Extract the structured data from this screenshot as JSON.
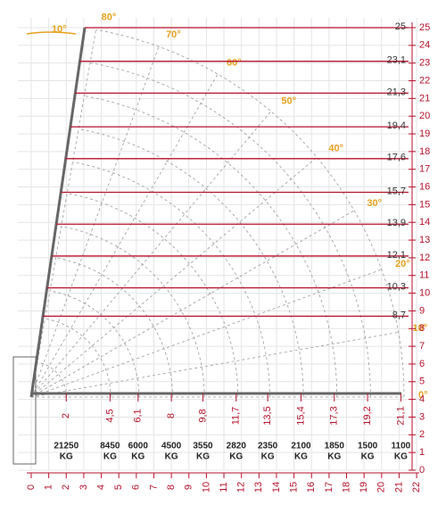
{
  "y_axis": [
    0,
    1,
    2,
    3,
    4,
    5,
    6,
    7,
    8,
    9,
    10,
    11,
    12,
    13,
    14,
    15,
    16,
    17,
    18,
    19,
    20,
    21,
    22,
    23,
    24,
    25
  ],
  "x_axis": [
    0,
    1,
    2,
    3,
    4,
    5,
    6,
    7,
    8,
    9,
    10,
    11,
    12,
    13,
    14,
    15,
    16,
    17,
    18,
    19,
    20,
    21,
    22
  ],
  "heights": [
    {
      "value": 25,
      "label": "25"
    },
    {
      "value": 23.1,
      "label": "23,1"
    },
    {
      "value": 21.3,
      "label": "21,3"
    },
    {
      "value": 19.4,
      "label": "19,4"
    },
    {
      "value": 17.6,
      "label": "17,6"
    },
    {
      "value": 15.7,
      "label": "15,7"
    },
    {
      "value": 13.9,
      "label": "13,9"
    },
    {
      "value": 12.1,
      "label": "12,1"
    },
    {
      "value": 10.3,
      "label": "10,3"
    },
    {
      "value": 8.7,
      "label": "8,7"
    }
  ],
  "reaches": [
    {
      "value": 2,
      "label": "2",
      "load": "21250"
    },
    {
      "value": 4.5,
      "label": "4,5",
      "load": "8450"
    },
    {
      "value": 6.1,
      "label": "6,1",
      "load": "6000"
    },
    {
      "value": 8,
      "label": "8",
      "load": "4500"
    },
    {
      "value": 9.8,
      "label": "9,8",
      "load": "3550"
    },
    {
      "value": 11.7,
      "label": "11,7",
      "load": "2820"
    },
    {
      "value": 13.5,
      "label": "13,5",
      "load": "2350"
    },
    {
      "value": 15.4,
      "label": "15,4",
      "load": "2100"
    },
    {
      "value": 17.3,
      "label": "17,3",
      "load": "1850"
    },
    {
      "value": 19.2,
      "label": "19,2",
      "load": "1500"
    },
    {
      "value": 21.1,
      "label": "21,1",
      "load": "1100"
    }
  ],
  "load_unit": "KG",
  "angles": [
    {
      "value": 80,
      "label": "80°"
    },
    {
      "value": 70,
      "label": "70°"
    },
    {
      "value": 60,
      "label": "60°"
    },
    {
      "value": 50,
      "label": "50°"
    },
    {
      "value": 40,
      "label": "40°"
    },
    {
      "value": 30,
      "label": "30°"
    },
    {
      "value": 20,
      "label": "20°"
    },
    {
      "value": 10,
      "label": "10°"
    },
    {
      "value": 0,
      "label": "0°"
    }
  ],
  "boom_extra_angle": "10°"
}
